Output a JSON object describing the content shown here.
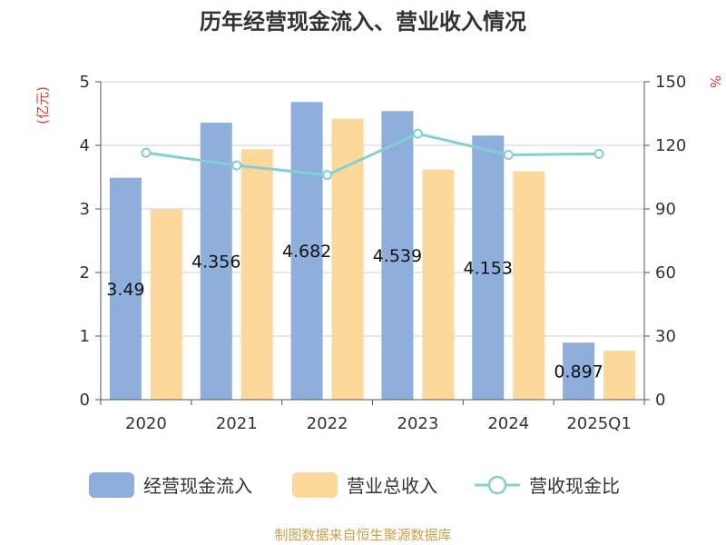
{
  "chart_data": {
    "type": "bar",
    "title": "历年经营现金流入、营业收入情况",
    "categories": [
      "2020",
      "2021",
      "2022",
      "2023",
      "2024",
      "2025Q1"
    ],
    "series": [
      {
        "name": "经营现金流入",
        "type": "bar",
        "axis": "left",
        "color": "#8eaedb",
        "values": [
          3.49,
          4.356,
          4.682,
          4.539,
          4.153,
          0.897
        ],
        "labels": [
          "3.49",
          "4.356",
          "4.682",
          "4.539",
          "4.153",
          "0.897"
        ]
      },
      {
        "name": "营业总收入",
        "type": "bar",
        "axis": "left",
        "color": "#fdd89b",
        "values": [
          2.99,
          3.94,
          4.42,
          3.62,
          3.59,
          0.77
        ]
      },
      {
        "name": "营收现金比",
        "type": "line",
        "axis": "right",
        "color": "#82d0d2",
        "values": [
          116.5,
          110.5,
          106,
          125.5,
          115.5,
          116
        ]
      }
    ],
    "y_left": {
      "unit": "(亿元)",
      "range": [
        0,
        5
      ],
      "ticks": [
        "0",
        "1",
        "2",
        "3",
        "4",
        "5"
      ]
    },
    "y_right": {
      "unit": "%",
      "range": [
        0,
        150
      ],
      "ticks": [
        "0",
        "30",
        "60",
        "90",
        "120",
        "150"
      ]
    },
    "grid": true,
    "legend_position": "bottom"
  },
  "footer": "制图数据来自恒生聚源数据库"
}
